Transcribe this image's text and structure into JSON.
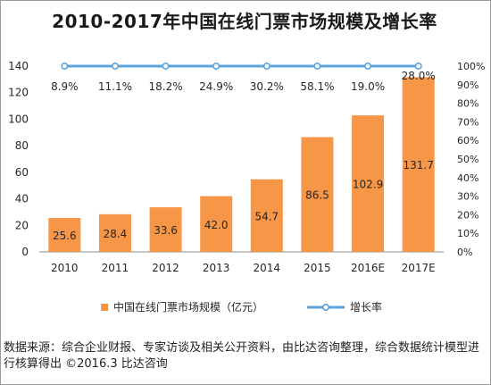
{
  "chart_data": {
    "type": "bar",
    "title": "2010-2017年中国在线门票市场规模及增长率",
    "categories": [
      "2010",
      "2011",
      "2012",
      "2013",
      "2014",
      "2015",
      "2016E",
      "2017E"
    ],
    "series": [
      {
        "name": "中国在线门票市场规模（亿元）",
        "type": "bar",
        "axis": "left",
        "color": "#F79646",
        "values": [
          25.6,
          28.4,
          33.6,
          42.0,
          54.7,
          86.5,
          102.9,
          131.7
        ],
        "labels": [
          "25.6",
          "28.4",
          "33.6",
          "42.0",
          "54.7",
          "86.5",
          "102.9",
          "131.7"
        ]
      },
      {
        "name": "增长率",
        "type": "line",
        "axis": "right",
        "color": "#5BA3DC",
        "values": [
          8.9,
          11.1,
          18.2,
          24.9,
          30.2,
          58.1,
          19.0,
          28.0
        ],
        "labels": [
          "8.9%",
          "11.1%",
          "18.2%",
          "24.9%",
          "30.2%",
          "58.1%",
          "19.0%",
          "28.0%"
        ]
      }
    ],
    "ylim_left": [
      0,
      140
    ],
    "yticks_left": [
      "0",
      "20",
      "40",
      "60",
      "80",
      "100",
      "120",
      "140"
    ],
    "ylim_right": [
      0,
      100
    ],
    "yticks_right": [
      "0%",
      "10%",
      "20%",
      "30%",
      "40%",
      "50%",
      "60%",
      "70%",
      "80%",
      "90%",
      "100%"
    ],
    "line_plotted_at_percent": 100,
    "grid": false,
    "legend_position": "bottom"
  },
  "source_text": "数据来源：综合企业财报、专家访谈及相关公开资料，由比达咨询整理，综合数据统计模型进行核算得出 ©2016.3 比达咨询"
}
